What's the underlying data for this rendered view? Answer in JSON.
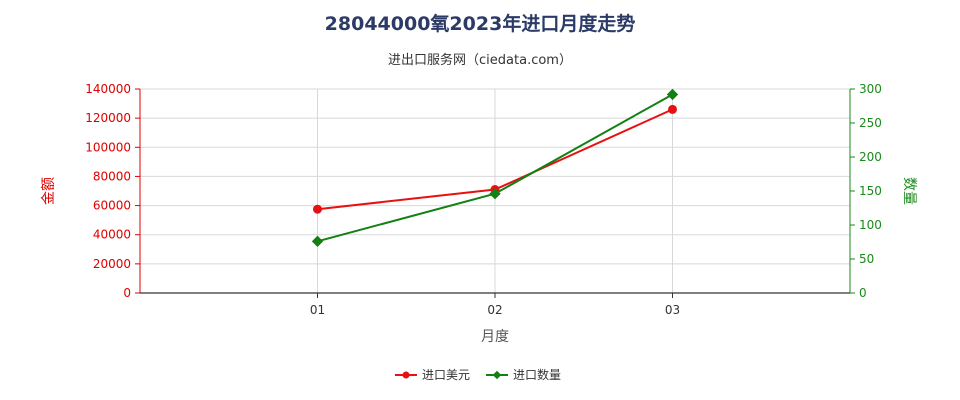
{
  "title": "28044000氧2023年进口月度走势",
  "subtitle": "进出口服务网（ciedata.com）",
  "chart_data": {
    "type": "line",
    "categories": [
      "01",
      "02",
      "03"
    ],
    "xlabel": "月度",
    "y_left_label": "金额",
    "y_right_label": "数量",
    "y_left_lim": [
      0,
      140000
    ],
    "y_left_ticks": [
      0,
      20000,
      40000,
      60000,
      80000,
      100000,
      120000,
      140000
    ],
    "y_right_lim": [
      0,
      300
    ],
    "y_right_ticks": [
      0,
      50,
      100,
      150,
      200,
      250,
      300
    ],
    "grid": true,
    "legend_position": "bottom",
    "series": [
      {
        "name": "进口美元",
        "axis": "left",
        "color": "#e81010",
        "values": [
          57500,
          71000,
          126000
        ]
      },
      {
        "name": "进口数量",
        "axis": "right",
        "color": "#138013",
        "values": [
          76,
          146,
          292
        ]
      }
    ]
  }
}
